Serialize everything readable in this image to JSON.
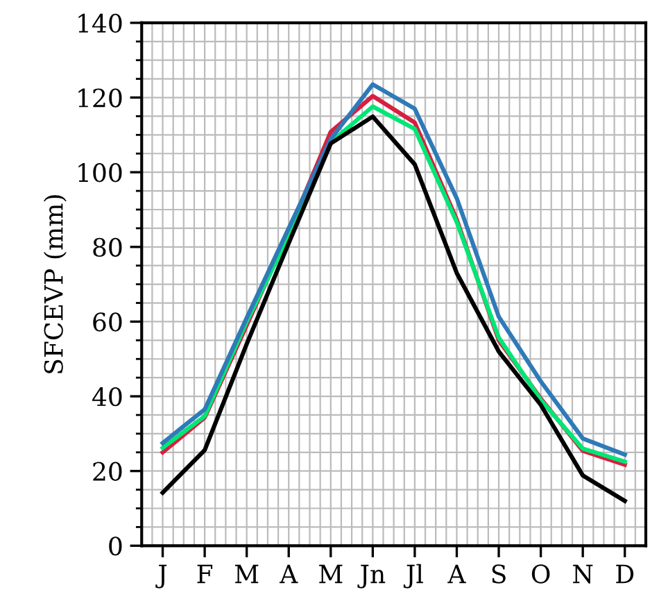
{
  "chart_data": {
    "type": "line",
    "ylabel": "SFCEVP (mm)",
    "categories": [
      "J",
      "F",
      "M",
      "A",
      "M",
      "Jn",
      "Jl",
      "A",
      "S",
      "O",
      "N",
      "D"
    ],
    "series": [
      {
        "color": "#d62040",
        "values": [
          25,
          34.3,
          59,
          84,
          110.8,
          120.4,
          113.3,
          87.3,
          55,
          39.4,
          25.4,
          21.7
        ]
      },
      {
        "color": "#00e676",
        "values": [
          26.2,
          34.7,
          60,
          83,
          108,
          117.6,
          111.6,
          86.6,
          55.7,
          39,
          26,
          22.5
        ]
      },
      {
        "color": "#2f7ab8",
        "values": [
          27.5,
          36.5,
          61,
          85,
          108.9,
          123.5,
          117,
          93,
          61.3,
          44,
          28.7,
          24.4
        ]
      },
      {
        "color": "#000000",
        "values": [
          14.2,
          25.6,
          54,
          81,
          107.7,
          114.9,
          102.1,
          73,
          52,
          37.7,
          18.8,
          12
        ]
      }
    ],
    "ylim": [
      0,
      140
    ],
    "yticks": [
      0,
      20,
      40,
      60,
      80,
      100,
      120,
      140
    ],
    "grid": true,
    "line_style": "solid",
    "marker": "none"
  }
}
